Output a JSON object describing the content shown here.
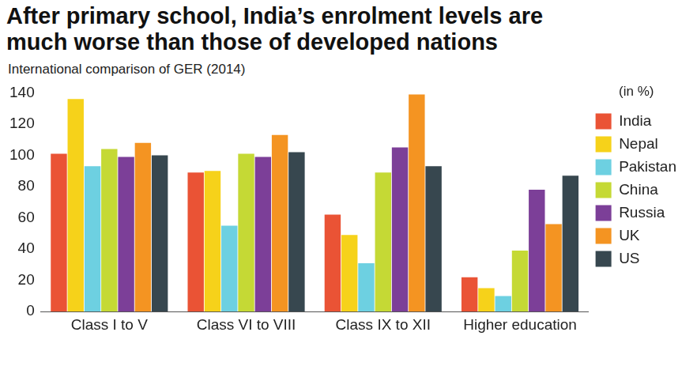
{
  "chart_data": {
    "type": "bar",
    "title": "After primary school, India’s enrolment levels are much worse than those of developed nations",
    "subtitle": "International comparison of GER (2014)",
    "y_label": "(in %)",
    "categories": [
      "Class I to V",
      "Class VI to VIII",
      "Class IX to XII",
      "Higher education"
    ],
    "series": [
      {
        "name": "India",
        "color": "#ea5335",
        "values": [
          101,
          89,
          62,
          22
        ]
      },
      {
        "name": "Nepal",
        "color": "#f6d21a",
        "values": [
          136,
          90,
          49,
          15
        ]
      },
      {
        "name": "Pakistan",
        "color": "#6dd0e1",
        "values": [
          93,
          55,
          31,
          10
        ]
      },
      {
        "name": "China",
        "color": "#c5d935",
        "values": [
          104,
          101,
          89,
          39
        ]
      },
      {
        "name": "Russia",
        "color": "#7c3f98",
        "values": [
          99,
          99,
          105,
          78
        ]
      },
      {
        "name": "UK",
        "color": "#f49422",
        "values": [
          108,
          113,
          139,
          56
        ]
      },
      {
        "name": "US",
        "color": "#37474f",
        "values": [
          100,
          102,
          93,
          87
        ]
      }
    ],
    "ylim": [
      0,
      140
    ],
    "yticks": [
      0,
      20,
      40,
      60,
      80,
      100,
      120,
      140
    ],
    "grid": false,
    "legend": "right"
  }
}
